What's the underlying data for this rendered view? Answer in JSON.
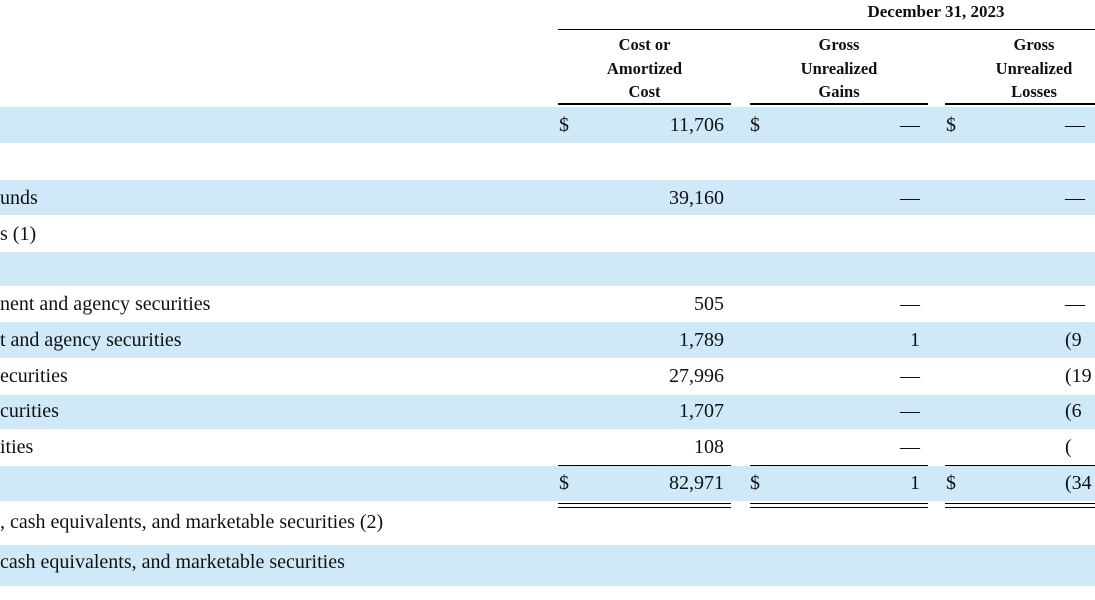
{
  "header": {
    "period": "December 31, 2023",
    "columns": [
      {
        "lines": [
          "Cost or",
          "Amortized",
          "Cost"
        ]
      },
      {
        "lines": [
          "Gross",
          "Unrealized",
          "Gains"
        ]
      },
      {
        "lines": [
          "Gross",
          "Unrealized",
          "Losses"
        ]
      }
    ]
  },
  "rows": [
    {
      "label": "",
      "dollar1": "$",
      "cost": "11,706",
      "dollar2": "$",
      "gains": "—",
      "dollar3": "$",
      "losses": "—"
    },
    {
      "label": "",
      "dollar1": "",
      "cost": "",
      "dollar2": "",
      "gains": "",
      "dollar3": "",
      "losses": ""
    },
    {
      "label": "unds",
      "dollar1": "",
      "cost": "39,160",
      "dollar2": "",
      "gains": "—",
      "dollar3": "",
      "losses": "—"
    },
    {
      "label": "s (1)",
      "dollar1": "",
      "cost": "",
      "dollar2": "",
      "gains": "",
      "dollar3": "",
      "losses": ""
    },
    {
      "label": "",
      "dollar1": "",
      "cost": "",
      "dollar2": "",
      "gains": "",
      "dollar3": "",
      "losses": ""
    },
    {
      "label": "nent and agency securities",
      "dollar1": "",
      "cost": "505",
      "dollar2": "",
      "gains": "—",
      "dollar3": "",
      "losses": "—"
    },
    {
      "label": "t and agency securities",
      "dollar1": "",
      "cost": "1,789",
      "dollar2": "",
      "gains": "1",
      "dollar3": "",
      "losses": "(9"
    },
    {
      "label": "ecurities",
      "dollar1": "",
      "cost": "27,996",
      "dollar2": "",
      "gains": "—",
      "dollar3": "",
      "losses": "(19"
    },
    {
      "label": "curities",
      "dollar1": "",
      "cost": "1,707",
      "dollar2": "",
      "gains": "—",
      "dollar3": "",
      "losses": "(6"
    },
    {
      "label": "ities",
      "dollar1": "",
      "cost": "108",
      "dollar2": "",
      "gains": "—",
      "dollar3": "",
      "losses": "("
    },
    {
      "label": "",
      "dollar1": "$",
      "cost": "82,971",
      "dollar2": "$",
      "gains": "1",
      "dollar3": "$",
      "losses": "(34"
    },
    {
      "label": ", cash equivalents, and marketable securities (2)",
      "dollar1": "",
      "cost": "",
      "dollar2": "",
      "gains": "",
      "dollar3": "",
      "losses": ""
    },
    {
      "label": "cash equivalents, and marketable securities",
      "dollar1": "",
      "cost": "",
      "dollar2": "",
      "gains": "",
      "dollar3": "",
      "losses": ""
    }
  ]
}
